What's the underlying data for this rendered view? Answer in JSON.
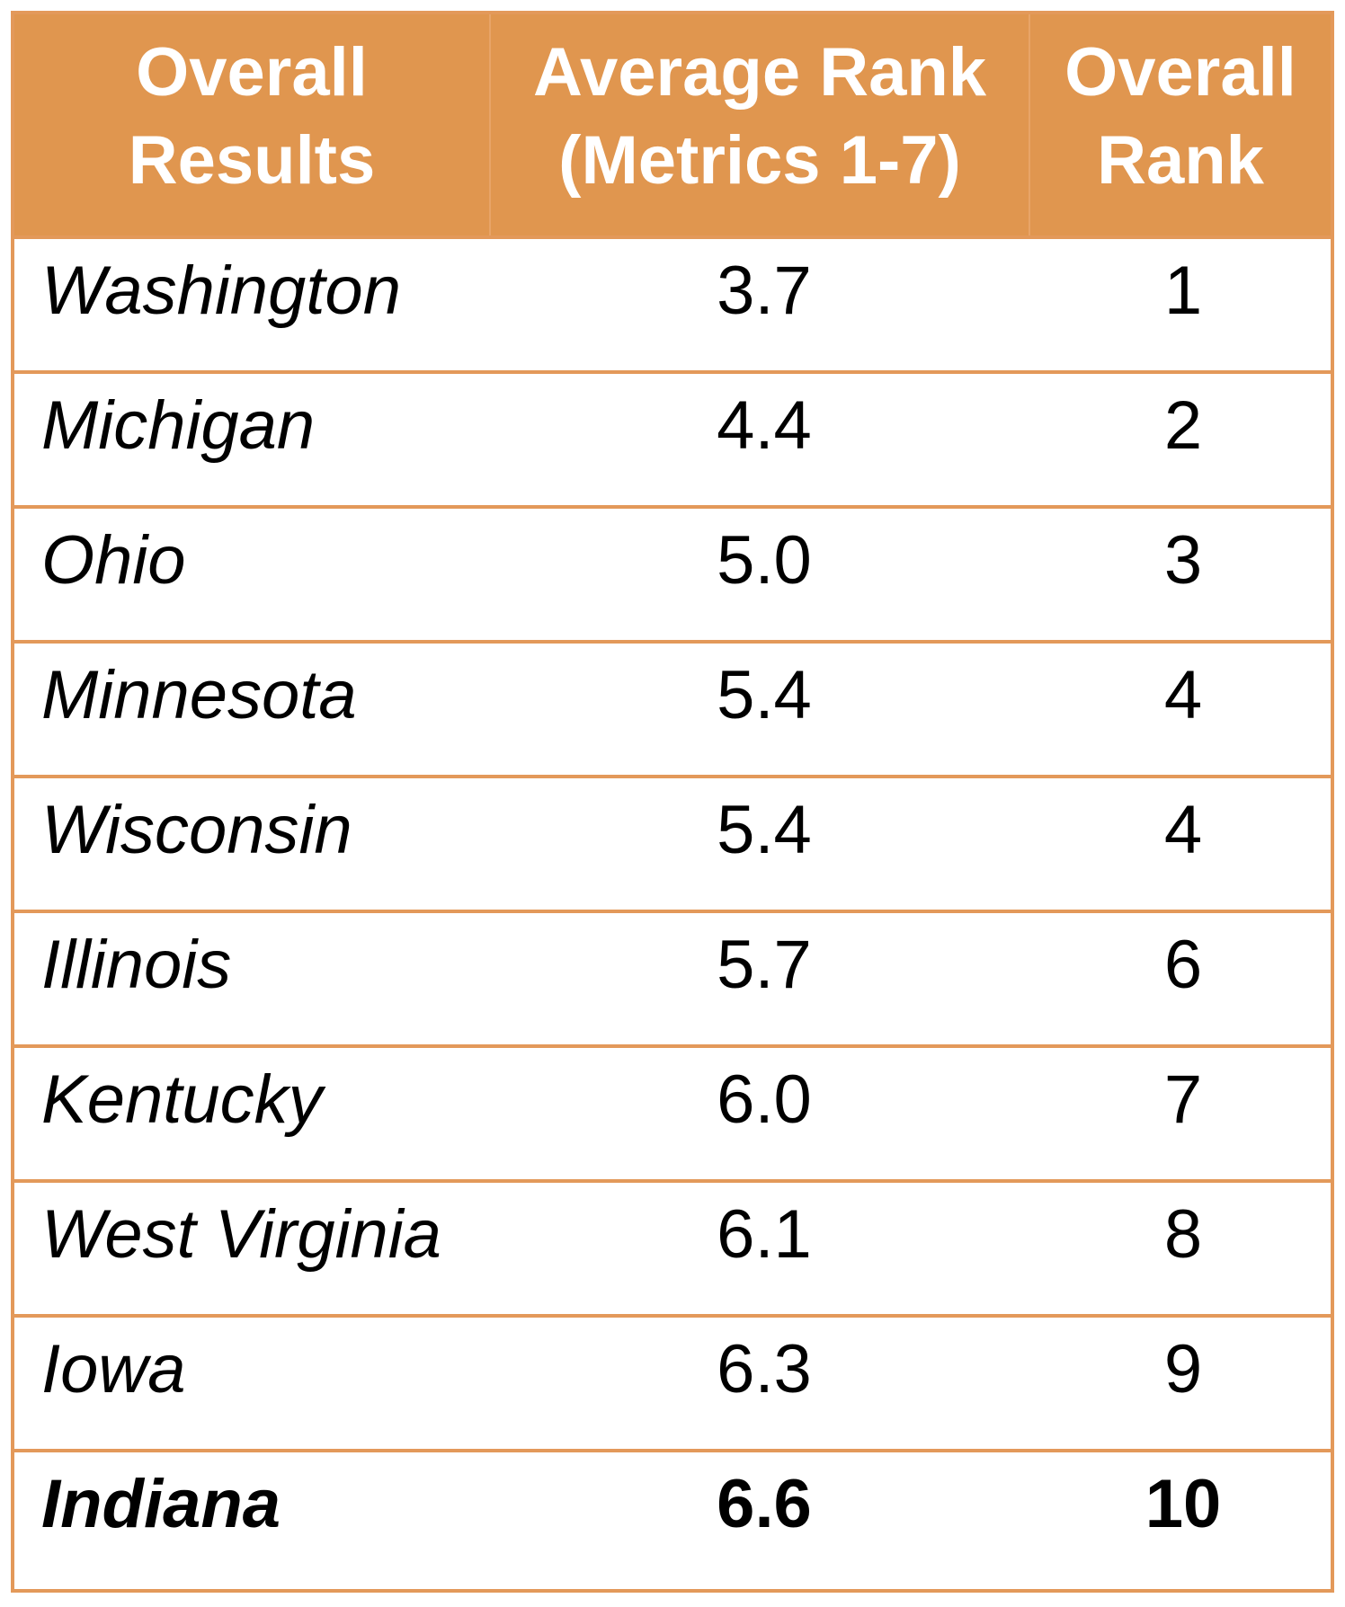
{
  "table": {
    "headers": [
      "Overall\nResults",
      "Average Rank\n(Metrics 1-7)",
      "Overall\nRank"
    ],
    "rows": [
      {
        "state": "Washington",
        "average_rank": "3.7",
        "overall_rank": "1"
      },
      {
        "state": "Michigan",
        "average_rank": "4.4",
        "overall_rank": "2"
      },
      {
        "state": "Ohio",
        "average_rank": "5.0",
        "overall_rank": "3"
      },
      {
        "state": "Minnesota",
        "average_rank": "5.4",
        "overall_rank": "4"
      },
      {
        "state": "Wisconsin",
        "average_rank": "5.4",
        "overall_rank": "4"
      },
      {
        "state": "Illinois",
        "average_rank": "5.7",
        "overall_rank": "6"
      },
      {
        "state": "Kentucky",
        "average_rank": "6.0",
        "overall_rank": "7"
      },
      {
        "state": "West Virginia",
        "average_rank": "6.1",
        "overall_rank": "8"
      },
      {
        "state": "Iowa",
        "average_rank": "6.3",
        "overall_rank": "9"
      },
      {
        "state": "Indiana",
        "average_rank": "6.6",
        "overall_rank": "10",
        "highlighted": true
      }
    ],
    "colors": {
      "header_background": "#e0964f",
      "border": "#e3995a",
      "header_text": "#ffffff"
    }
  }
}
